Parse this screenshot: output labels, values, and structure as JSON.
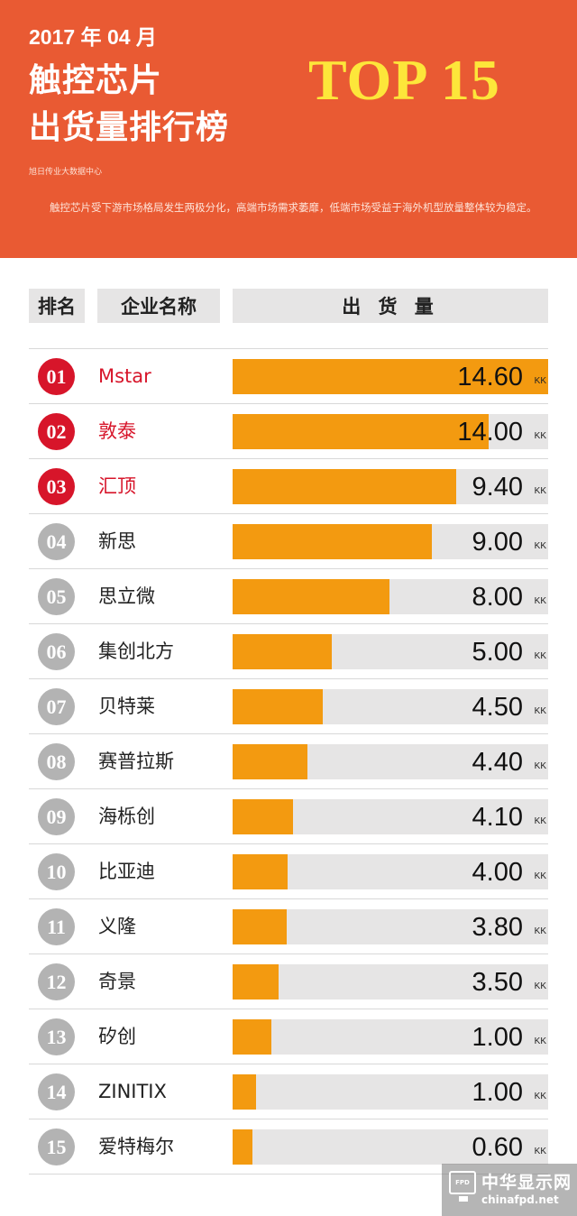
{
  "header": {
    "date": "2017 年 04 月",
    "title_line1": "触控芯片",
    "title_line2": "出货量排行榜",
    "top_label": "TOP 15",
    "source": "旭日传业大数据中心",
    "description": "触控芯片受下游市场格局发生两极分化，高端市场需求萎靡，低端市场受益于海外机型放量整体较为稳定。"
  },
  "columns": {
    "rank": "排名",
    "company": "企业名称",
    "shipment": "出 货 量"
  },
  "unit": "KK",
  "colors": {
    "header_bg": "#e95a33",
    "top_text": "#fde63a",
    "bar": "#f39a10",
    "track": "#e6e5e5",
    "top3_red": "#d7152a",
    "rank_gray": "#b3b3b3"
  },
  "chart_data": {
    "type": "bar",
    "orientation": "horizontal",
    "title": "触控芯片出货量排行榜",
    "xlim": [
      0,
      14.6
    ],
    "categories": [
      "Mstar",
      "敦泰",
      "汇顶",
      "新思",
      "思立微",
      "集创北方",
      "贝特莱",
      "赛普拉斯",
      "海栎创",
      "比亚迪",
      "义隆",
      "奇景",
      "矽创",
      "ZINITIX",
      "爱特梅尔"
    ],
    "ranks": [
      "01",
      "02",
      "03",
      "04",
      "05",
      "06",
      "07",
      "08",
      "09",
      "10",
      "11",
      "12",
      "13",
      "14",
      "15"
    ],
    "values": [
      14.6,
      14.0,
      9.4,
      9.0,
      8.0,
      5.0,
      4.5,
      4.4,
      4.1,
      4.0,
      3.8,
      3.5,
      1.0,
      1.0,
      0.6
    ],
    "value_labels": [
      "14.60",
      "14.00",
      "9.40",
      "9.00",
      "8.00",
      "5.00",
      "4.50",
      "4.40",
      "4.10",
      "4.00",
      "3.80",
      "3.50",
      "1.00",
      "1.00",
      "0.60"
    ],
    "bar_fraction": [
      1.0,
      0.811,
      0.709,
      0.631,
      0.497,
      0.314,
      0.286,
      0.237,
      0.191,
      0.174,
      0.171,
      0.146,
      0.123,
      0.074,
      0.063
    ]
  },
  "watermark": {
    "logo_text": "FPD",
    "name": "中华显示网",
    "url": "chinafpd.net"
  }
}
